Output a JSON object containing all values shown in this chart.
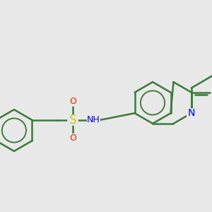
{
  "background_color": "#e8e8e8",
  "bond_color": "#3a7a3a",
  "bond_width": 1.8,
  "atom_colors": {
    "F": "#ee00ee",
    "S": "#cccc00",
    "O": "#ff2200",
    "N": "#0000ee",
    "H": "#888888",
    "C": "#3a7a3a"
  },
  "figsize": [
    3.0,
    3.0
  ],
  "dpi": 100
}
